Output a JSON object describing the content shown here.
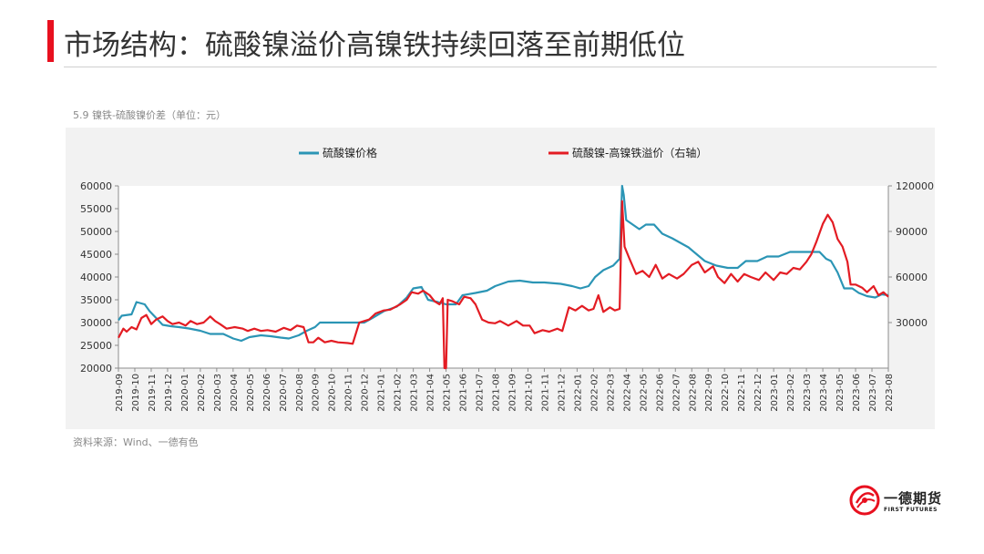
{
  "page": {
    "title": "市场结构：硫酸镍溢价高镍铁持续回落至前期低位",
    "subtitle": "5.9 镍铁-硫酸镍价差（单位：元）",
    "source": "资料来源：Wind、一德有色",
    "accent": "#e8101f",
    "logo": {
      "name": "一德期货",
      "sub": "FIRST FUTURES"
    }
  },
  "chart_data": {
    "type": "line",
    "legend_placement": "top",
    "grid": false,
    "x_categories": [
      "2019-09",
      "2019-10",
      "2019-11",
      "2019-12",
      "2020-01",
      "2020-02",
      "2020-03",
      "2020-04",
      "2020-05",
      "2020-06",
      "2020-07",
      "2020-08",
      "2020-09",
      "2020-10",
      "2020-11",
      "2020-12",
      "2021-01",
      "2021-02",
      "2021-03",
      "2021-04",
      "2021-05",
      "2021-06",
      "2021-07",
      "2021-08",
      "2021-09",
      "2021-10",
      "2021-11",
      "2021-12",
      "2022-01",
      "2022-02",
      "2022-03",
      "2022-04",
      "2022-05",
      "2022-06",
      "2022-07",
      "2022-08",
      "2022-09",
      "2022-10",
      "2022-11",
      "2022-12",
      "2023-01",
      "2023-02",
      "2023-03",
      "2023-04",
      "2023-05",
      "2023-06",
      "2023-07",
      "2023-08"
    ],
    "y_left": {
      "ticks": [
        "60000",
        "55000",
        "50000",
        "45000",
        "40000",
        "35000",
        "30000",
        "25000",
        "20000"
      ],
      "min": 20000,
      "max": 60000
    },
    "y_right": {
      "ticks": [
        "120000",
        "90000",
        "60000",
        "30000"
      ],
      "min": 0,
      "max": 120000
    },
    "series": [
      {
        "name": "硫酸镍价格",
        "axis": "left",
        "color": "#2b95b5",
        "points": [
          [
            0,
            30500
          ],
          [
            0.2,
            31500
          ],
          [
            0.8,
            31800
          ],
          [
            1.1,
            34500
          ],
          [
            1.6,
            34000
          ],
          [
            1.9,
            32500
          ],
          [
            2.3,
            31000
          ],
          [
            2.7,
            29500
          ],
          [
            3.2,
            29200
          ],
          [
            3.7,
            29000
          ],
          [
            4.3,
            28700
          ],
          [
            5,
            28200
          ],
          [
            5.6,
            27500
          ],
          [
            6.4,
            27500
          ],
          [
            7,
            26500
          ],
          [
            7.5,
            26000
          ],
          [
            8,
            26800
          ],
          [
            8.7,
            27200
          ],
          [
            9.3,
            27000
          ],
          [
            9.9,
            26700
          ],
          [
            10.4,
            26500
          ],
          [
            11,
            27200
          ],
          [
            11.5,
            28200
          ],
          [
            12,
            29000
          ],
          [
            12.3,
            30000
          ],
          [
            12.8,
            30000
          ],
          [
            13.5,
            30000
          ],
          [
            14.3,
            30000
          ],
          [
            15,
            30000
          ],
          [
            15.5,
            31000
          ],
          [
            16.2,
            32500
          ],
          [
            17,
            33500
          ],
          [
            17.6,
            35500
          ],
          [
            18,
            37500
          ],
          [
            18.5,
            37800
          ],
          [
            18.9,
            35000
          ],
          [
            19.5,
            34500
          ],
          [
            20,
            34000
          ],
          [
            20.6,
            34000
          ],
          [
            21,
            36000
          ],
          [
            21.8,
            36500
          ],
          [
            22.5,
            37000
          ],
          [
            23,
            38000
          ],
          [
            23.8,
            39000
          ],
          [
            24.5,
            39200
          ],
          [
            25.3,
            38800
          ],
          [
            26,
            38800
          ],
          [
            27,
            38500
          ],
          [
            27.7,
            38000
          ],
          [
            28.2,
            37500
          ],
          [
            28.7,
            38000
          ],
          [
            29.1,
            40000
          ],
          [
            29.6,
            41500
          ],
          [
            30.2,
            42500
          ],
          [
            30.6,
            44000
          ],
          [
            30.75,
            60500
          ],
          [
            30.85,
            58000
          ],
          [
            31,
            52500
          ],
          [
            31.4,
            51500
          ],
          [
            31.8,
            50500
          ],
          [
            32.2,
            51500
          ],
          [
            32.7,
            51500
          ],
          [
            33.2,
            49500
          ],
          [
            33.8,
            48500
          ],
          [
            34.3,
            47500
          ],
          [
            34.8,
            46500
          ],
          [
            35.3,
            45000
          ],
          [
            35.8,
            43500
          ],
          [
            36.5,
            42500
          ],
          [
            37.2,
            42000
          ],
          [
            37.8,
            42000
          ],
          [
            38.3,
            43500
          ],
          [
            39,
            43500
          ],
          [
            39.6,
            44500
          ],
          [
            40.3,
            44500
          ],
          [
            41,
            45500
          ],
          [
            42,
            45500
          ],
          [
            42.8,
            45500
          ],
          [
            43.2,
            44000
          ],
          [
            43.5,
            43500
          ],
          [
            43.9,
            41000
          ],
          [
            44.3,
            37500
          ],
          [
            44.8,
            37500
          ],
          [
            45.2,
            36500
          ],
          [
            45.7,
            35800
          ],
          [
            46.2,
            35500
          ],
          [
            46.6,
            36200
          ],
          [
            47,
            36000
          ]
        ]
      },
      {
        "name": "硫酸镍-高镍铁溢价（右轴）",
        "axis": "right",
        "color": "#e31c23",
        "points": [
          [
            0,
            20000
          ],
          [
            0.3,
            26000
          ],
          [
            0.5,
            24000
          ],
          [
            0.8,
            27000
          ],
          [
            1.1,
            25500
          ],
          [
            1.4,
            33000
          ],
          [
            1.7,
            35000
          ],
          [
            2,
            29000
          ],
          [
            2.3,
            32000
          ],
          [
            2.7,
            34000
          ],
          [
            3,
            31000
          ],
          [
            3.3,
            29000
          ],
          [
            3.7,
            30000
          ],
          [
            4.1,
            28000
          ],
          [
            4.4,
            31000
          ],
          [
            4.8,
            29000
          ],
          [
            5.2,
            30000
          ],
          [
            5.6,
            34000
          ],
          [
            5.9,
            31000
          ],
          [
            6.2,
            29000
          ],
          [
            6.6,
            26000
          ],
          [
            7.1,
            27000
          ],
          [
            7.6,
            26000
          ],
          [
            7.9,
            24500
          ],
          [
            8.3,
            26000
          ],
          [
            8.7,
            24500
          ],
          [
            9.1,
            25000
          ],
          [
            9.6,
            24000
          ],
          [
            10.1,
            26500
          ],
          [
            10.5,
            25000
          ],
          [
            10.9,
            28000
          ],
          [
            11.3,
            27000
          ],
          [
            11.6,
            17000
          ],
          [
            11.9,
            17000
          ],
          [
            12.2,
            20000
          ],
          [
            12.6,
            17000
          ],
          [
            13,
            18000
          ],
          [
            13.4,
            17000
          ],
          [
            14,
            16500
          ],
          [
            14.3,
            16000
          ],
          [
            14.7,
            30000
          ],
          [
            15.3,
            32000
          ],
          [
            15.7,
            36000
          ],
          [
            16.2,
            38000
          ],
          [
            16.6,
            38500
          ],
          [
            17.2,
            42000
          ],
          [
            17.6,
            45000
          ],
          [
            17.9,
            50000
          ],
          [
            18.3,
            49000
          ],
          [
            18.6,
            51000
          ],
          [
            19,
            48000
          ],
          [
            19.3,
            44000
          ],
          [
            19.6,
            42000
          ],
          [
            19.8,
            46000
          ],
          [
            19.9,
            0
          ],
          [
            20.0,
            0
          ],
          [
            20.1,
            45000
          ],
          [
            20.4,
            44000
          ],
          [
            20.8,
            42000
          ],
          [
            21.1,
            47000
          ],
          [
            21.5,
            46000
          ],
          [
            21.8,
            42000
          ],
          [
            22.2,
            32000
          ],
          [
            22.6,
            30000
          ],
          [
            23,
            29500
          ],
          [
            23.3,
            31000
          ],
          [
            23.8,
            28000
          ],
          [
            24.3,
            31000
          ],
          [
            24.7,
            28000
          ],
          [
            25.1,
            28000
          ],
          [
            25.4,
            23000
          ],
          [
            25.9,
            25000
          ],
          [
            26.3,
            24000
          ],
          [
            26.8,
            26000
          ],
          [
            27.1,
            24500
          ],
          [
            27.5,
            40000
          ],
          [
            27.9,
            38000
          ],
          [
            28.3,
            41000
          ],
          [
            28.7,
            38000
          ],
          [
            29,
            39000
          ],
          [
            29.3,
            48000
          ],
          [
            29.6,
            37000
          ],
          [
            30,
            40000
          ],
          [
            30.3,
            38000
          ],
          [
            30.6,
            39000
          ],
          [
            30.75,
            110000
          ],
          [
            30.9,
            80000
          ],
          [
            31.2,
            72000
          ],
          [
            31.6,
            62000
          ],
          [
            32,
            64000
          ],
          [
            32.4,
            60000
          ],
          [
            32.8,
            68000
          ],
          [
            33.2,
            59000
          ],
          [
            33.6,
            62000
          ],
          [
            34.1,
            59000
          ],
          [
            34.5,
            62000
          ],
          [
            35,
            68000
          ],
          [
            35.4,
            70000
          ],
          [
            35.8,
            63000
          ],
          [
            36.3,
            67000
          ],
          [
            36.6,
            60000
          ],
          [
            37,
            56000
          ],
          [
            37.4,
            62000
          ],
          [
            37.8,
            57000
          ],
          [
            38.2,
            62000
          ],
          [
            38.6,
            60000
          ],
          [
            39.1,
            58000
          ],
          [
            39.5,
            63000
          ],
          [
            40,
            58000
          ],
          [
            40.4,
            63000
          ],
          [
            40.8,
            62000
          ],
          [
            41.2,
            66000
          ],
          [
            41.6,
            65000
          ],
          [
            42,
            70000
          ],
          [
            42.3,
            75000
          ],
          [
            42.6,
            83000
          ],
          [
            43,
            95000
          ],
          [
            43.3,
            101000
          ],
          [
            43.6,
            96000
          ],
          [
            43.9,
            85000
          ],
          [
            44.2,
            80000
          ],
          [
            44.5,
            70000
          ],
          [
            44.7,
            55000
          ],
          [
            45,
            55000
          ],
          [
            45.4,
            53000
          ],
          [
            45.7,
            50000
          ],
          [
            46.1,
            54000
          ],
          [
            46.4,
            48000
          ],
          [
            46.7,
            50000
          ],
          [
            47,
            47000
          ]
        ]
      }
    ]
  }
}
